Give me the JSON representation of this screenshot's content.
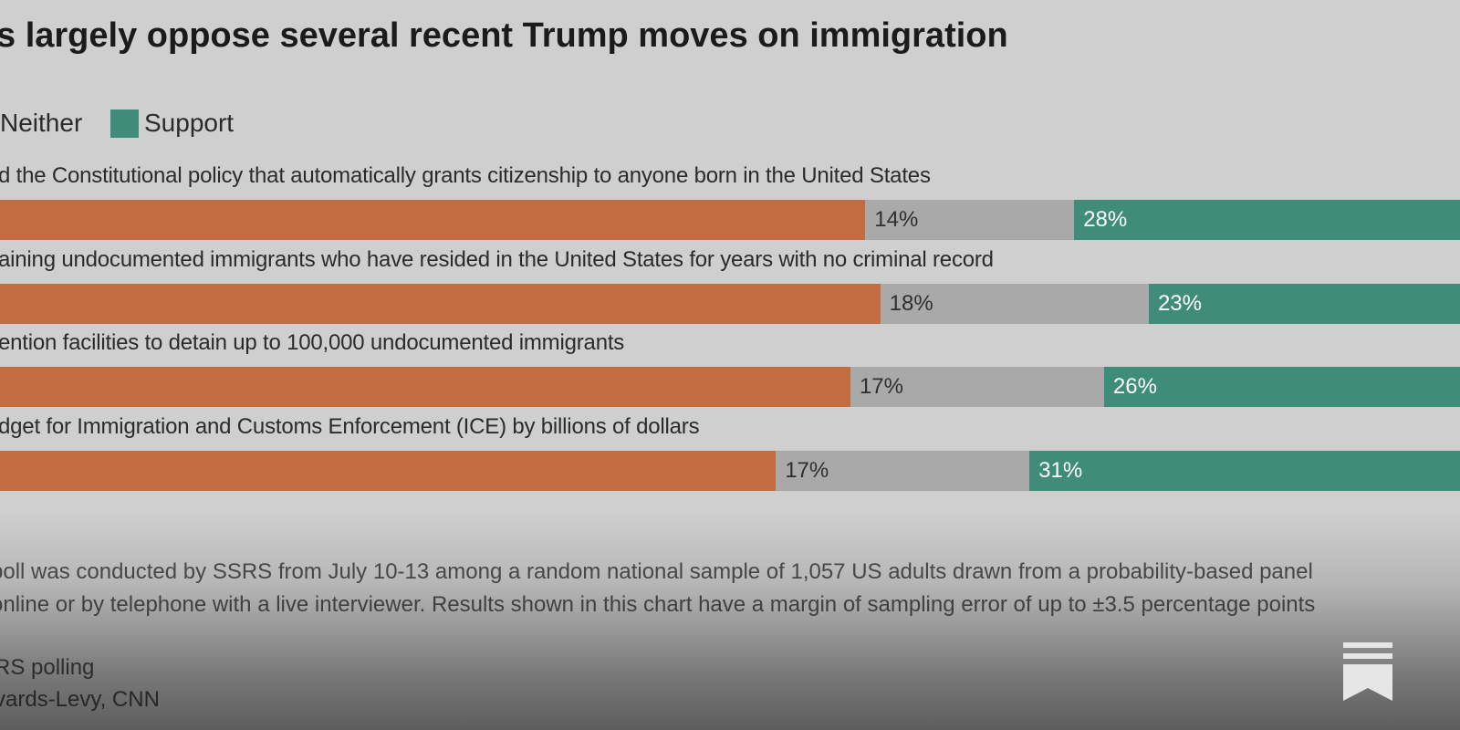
{
  "title": "s largely oppose several recent Trump moves on immigration",
  "legend": {
    "neither_label": "Neither",
    "support_label": "Support"
  },
  "colors": {
    "oppose": "#c36c42",
    "neither": "#a9a9a9",
    "support": "#3f8c78",
    "background": "#cfcfcf"
  },
  "chart_data": {
    "type": "bar",
    "orientation": "horizontal",
    "stacked": true,
    "categories": [
      "d the Constitutional policy that automatically grants citizenship to anyone born in the United States",
      "aining undocumented immigrants who have resided in the United States for years with no criminal record",
      "ention facilities to detain up to 100,000 undocumented immigrants",
      "dget for Immigration and Customs Enforcement (ICE) by billions of dollars"
    ],
    "series": [
      {
        "values": [
          58,
          59,
          57,
          52
        ]
      },
      {
        "name": "Neither",
        "values": [
          14,
          18,
          17,
          17
        ],
        "labels": [
          "14%",
          "18%",
          "17%",
          "17%"
        ]
      },
      {
        "name": "Support",
        "values": [
          28,
          23,
          26,
          31
        ],
        "labels": [
          "28%",
          "23%",
          "26%",
          "31%"
        ]
      }
    ],
    "xlim": [
      0,
      100
    ],
    "legend": "top-left"
  },
  "footnote": {
    "line1": "poll was conducted by SSRS from July 10-13 among a random national sample of 1,057 US adults drawn from a probability-based panel",
    "line2": "online or by telephone with a live interviewer. Results shown in this chart have a margin of sampling error of up to ±3.5 percentage points"
  },
  "source": {
    "line1": "RS polling",
    "line2": "vards-Levy, CNN"
  },
  "icons": {
    "bookmark": "bookmark-icon"
  }
}
